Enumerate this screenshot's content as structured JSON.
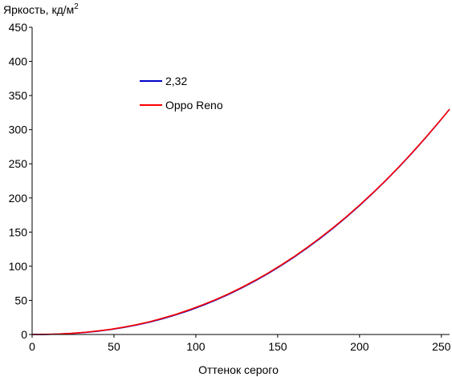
{
  "chart_data": {
    "type": "line",
    "ylabel": "Яркость, кд/м",
    "ylabel_sup": "2",
    "xlabel": "Оттенок серого",
    "xlim": [
      0,
      255
    ],
    "ylim": [
      0,
      450
    ],
    "xticks": [
      "0",
      "50",
      "100",
      "150",
      "200",
      "250"
    ],
    "yticks": [
      "0",
      "50",
      "100",
      "150",
      "200",
      "250",
      "300",
      "350",
      "400",
      "450"
    ],
    "grid": false,
    "legend_position": "upper-left",
    "series": [
      {
        "name": "2,32",
        "color": "#0000cc",
        "x": [
          0,
          8,
          16,
          24,
          32,
          40,
          48,
          56,
          64,
          72,
          80,
          88,
          96,
          104,
          112,
          120,
          128,
          136,
          144,
          152,
          160,
          168,
          176,
          184,
          192,
          200,
          208,
          216,
          224,
          232,
          240,
          248,
          255
        ],
        "y": [
          0,
          0.1,
          0.6,
          1.5,
          2.9,
          4.8,
          7.3,
          10.3,
          14.0,
          18.3,
          23.3,
          28.9,
          35.3,
          42.4,
          50.2,
          58.7,
          68.1,
          78.2,
          89.1,
          100.8,
          113.3,
          126.7,
          140.9,
          156.0,
          172.0,
          188.9,
          206.7,
          225.4,
          245.0,
          265.6,
          287.1,
          309.6,
          330.0
        ]
      },
      {
        "name": "Oppo Reno",
        "color": "#ff0000",
        "x": [
          0,
          8,
          16,
          24,
          32,
          40,
          48,
          56,
          64,
          72,
          80,
          88,
          96,
          104,
          112,
          120,
          128,
          136,
          144,
          152,
          160,
          168,
          176,
          184,
          192,
          200,
          208,
          216,
          224,
          232,
          240,
          248,
          255
        ],
        "y": [
          0,
          0.2,
          0.7,
          1.7,
          3.1,
          5.2,
          7.6,
          10.8,
          14.5,
          18.8,
          24.0,
          29.6,
          36.2,
          43.3,
          51.0,
          59.5,
          68.9,
          79.0,
          89.8,
          101.6,
          114.0,
          127.5,
          141.7,
          156.7,
          172.6,
          189.5,
          207.2,
          225.8,
          245.4,
          266.0,
          287.5,
          309.9,
          330.0
        ]
      }
    ]
  }
}
